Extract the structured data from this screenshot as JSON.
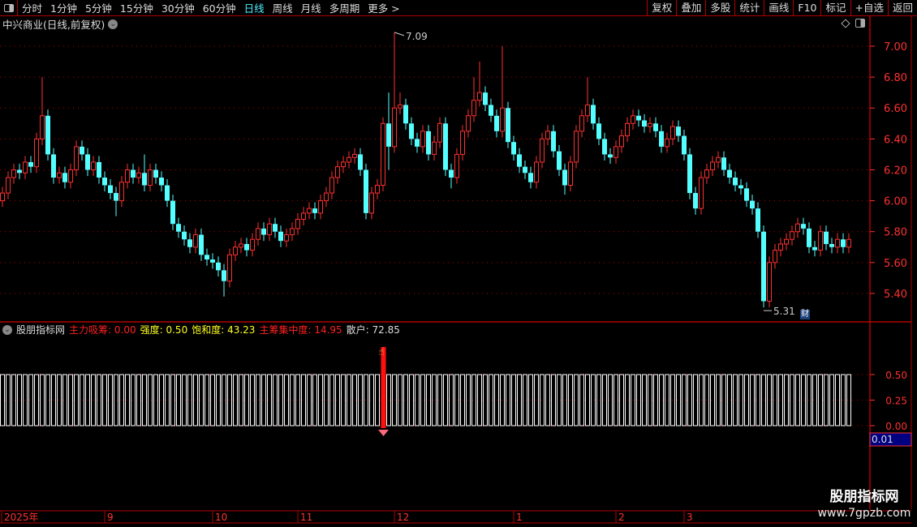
{
  "toolbar": {
    "periods": [
      "分时",
      "1分钟",
      "5分钟",
      "15分钟",
      "30分钟",
      "60分钟",
      "日线",
      "周线",
      "月线",
      "多周期",
      "更多 >"
    ],
    "active_period": "日线",
    "buttons": [
      "复权",
      "叠加",
      "多股",
      "统计",
      "画线",
      "F10",
      "标记",
      "+自选",
      "返回"
    ]
  },
  "header": {
    "title": "中兴商业(日线,前复权)"
  },
  "indicator": {
    "name": "股朋指标网",
    "items": [
      {
        "label": "主力吸筹:",
        "value": "0.00",
        "color": "red"
      },
      {
        "label": "强度:",
        "value": "0.50",
        "color": "yel"
      },
      {
        "label": "饱和度:",
        "value": "43.23",
        "color": "yel"
      },
      {
        "label": "主筹集中度:",
        "value": "14.95",
        "color": "red"
      },
      {
        "label": "散户:",
        "value": "72.85",
        "color": "wht"
      }
    ],
    "axis_ticks": [
      "0.50",
      "0.25",
      "0.00"
    ],
    "cursor_value": "0.01",
    "bar_value": 0.5,
    "highlight_index": 67
  },
  "watermark": {
    "line1": "股朋指标网",
    "line2": "www.7gpzb.com"
  },
  "badge": "财",
  "colors": {
    "up": "#ff3030",
    "down": "#54ffff",
    "axis": "#ff3030",
    "grid": "#b00000"
  },
  "chart_data": {
    "type": "candlestick",
    "ylim": [
      5.25,
      7.2
    ],
    "y_ticks": [
      "7.00",
      "6.80",
      "6.60",
      "6.40",
      "6.20",
      "6.00",
      "5.80",
      "5.60",
      "5.40"
    ],
    "max_label": "7.09",
    "min_label": "5.31",
    "time_labels": [
      {
        "label": "2025年",
        "index": 0
      },
      {
        "label": "9",
        "index": 18
      },
      {
        "label": "10",
        "index": 37
      },
      {
        "label": "11",
        "index": 52
      },
      {
        "label": "12",
        "index": 69
      },
      {
        "label": "1",
        "index": 90
      },
      {
        "label": "2",
        "index": 108
      },
      {
        "label": "3",
        "index": 120
      }
    ],
    "ohlc": [
      [
        6.0,
        6.09,
        5.96,
        6.05
      ],
      [
        6.05,
        6.19,
        6.01,
        6.15
      ],
      [
        6.15,
        6.24,
        6.11,
        6.2
      ],
      [
        6.2,
        6.24,
        6.14,
        6.18
      ],
      [
        6.18,
        6.29,
        6.14,
        6.25
      ],
      [
        6.25,
        6.29,
        6.18,
        6.22
      ],
      [
        6.22,
        6.44,
        6.18,
        6.4
      ],
      [
        6.4,
        6.8,
        6.36,
        6.55
      ],
      [
        6.55,
        6.59,
        6.26,
        6.3
      ],
      [
        6.3,
        6.34,
        6.11,
        6.15
      ],
      [
        6.15,
        6.22,
        6.11,
        6.18
      ],
      [
        6.18,
        6.22,
        6.08,
        6.12
      ],
      [
        6.12,
        6.24,
        6.08,
        6.2
      ],
      [
        6.2,
        6.39,
        6.16,
        6.35
      ],
      [
        6.35,
        6.39,
        6.26,
        6.3
      ],
      [
        6.3,
        6.34,
        6.16,
        6.2
      ],
      [
        6.2,
        6.29,
        6.16,
        6.25
      ],
      [
        6.25,
        6.29,
        6.11,
        6.15
      ],
      [
        6.15,
        6.19,
        6.06,
        6.1
      ],
      [
        6.1,
        6.14,
        6.01,
        6.05
      ],
      [
        6.05,
        6.09,
        5.9,
        6.0
      ],
      [
        6.0,
        6.16,
        5.96,
        6.12
      ],
      [
        6.12,
        6.24,
        6.08,
        6.2
      ],
      [
        6.2,
        6.24,
        6.11,
        6.15
      ],
      [
        6.15,
        6.22,
        6.11,
        6.18
      ],
      [
        6.18,
        6.3,
        6.06,
        6.1
      ],
      [
        6.1,
        6.24,
        6.06,
        6.2
      ],
      [
        6.2,
        6.24,
        6.11,
        6.15
      ],
      [
        6.15,
        6.19,
        6.06,
        6.1
      ],
      [
        6.1,
        6.14,
        5.96,
        6.0
      ],
      [
        6.0,
        6.04,
        5.81,
        5.85
      ],
      [
        5.85,
        5.89,
        5.76,
        5.8
      ],
      [
        5.8,
        5.84,
        5.71,
        5.75
      ],
      [
        5.75,
        5.79,
        5.66,
        5.7
      ],
      [
        5.7,
        5.82,
        5.66,
        5.78
      ],
      [
        5.78,
        5.82,
        5.61,
        5.65
      ],
      [
        5.65,
        5.69,
        5.58,
        5.62
      ],
      [
        5.62,
        5.66,
        5.56,
        5.6
      ],
      [
        5.6,
        5.64,
        5.51,
        5.55
      ],
      [
        5.55,
        5.59,
        5.38,
        5.48
      ],
      [
        5.48,
        5.69,
        5.44,
        5.65
      ],
      [
        5.65,
        5.74,
        5.61,
        5.7
      ],
      [
        5.7,
        5.76,
        5.66,
        5.72
      ],
      [
        5.72,
        5.76,
        5.64,
        5.68
      ],
      [
        5.68,
        5.79,
        5.64,
        5.75
      ],
      [
        5.75,
        5.86,
        5.71,
        5.82
      ],
      [
        5.82,
        5.86,
        5.74,
        5.78
      ],
      [
        5.78,
        5.89,
        5.74,
        5.85
      ],
      [
        5.85,
        5.89,
        5.76,
        5.8
      ],
      [
        5.8,
        5.84,
        5.7,
        5.74
      ],
      [
        5.74,
        5.82,
        5.7,
        5.78
      ],
      [
        5.78,
        5.86,
        5.74,
        5.82
      ],
      [
        5.82,
        5.92,
        5.78,
        5.88
      ],
      [
        5.88,
        5.96,
        5.84,
        5.92
      ],
      [
        5.92,
        5.99,
        5.88,
        5.95
      ],
      [
        5.95,
        5.99,
        5.88,
        5.92
      ],
      [
        5.92,
        6.04,
        5.88,
        6.0
      ],
      [
        6.0,
        6.09,
        5.96,
        6.05
      ],
      [
        6.05,
        6.19,
        6.01,
        6.15
      ],
      [
        6.15,
        6.26,
        6.11,
        6.22
      ],
      [
        6.22,
        6.29,
        6.18,
        6.25
      ],
      [
        6.25,
        6.32,
        6.21,
        6.28
      ],
      [
        6.28,
        6.34,
        6.24,
        6.3
      ],
      [
        6.3,
        6.34,
        6.16,
        6.2
      ],
      [
        6.2,
        6.24,
        5.88,
        5.92
      ],
      [
        5.92,
        6.09,
        5.88,
        6.05
      ],
      [
        6.05,
        6.14,
        6.01,
        6.1
      ],
      [
        6.1,
        6.54,
        6.06,
        6.5
      ],
      [
        6.5,
        6.7,
        6.2,
        6.35
      ],
      [
        6.35,
        7.09,
        6.31,
        6.6
      ],
      [
        6.6,
        6.7,
        6.56,
        6.62
      ],
      [
        6.62,
        6.66,
        6.46,
        6.5
      ],
      [
        6.5,
        6.54,
        6.36,
        6.4
      ],
      [
        6.4,
        6.44,
        6.31,
        6.35
      ],
      [
        6.35,
        6.49,
        6.31,
        6.45
      ],
      [
        6.45,
        6.49,
        6.26,
        6.3
      ],
      [
        6.3,
        6.42,
        6.26,
        6.38
      ],
      [
        6.38,
        6.54,
        6.34,
        6.5
      ],
      [
        6.5,
        6.54,
        6.16,
        6.2
      ],
      [
        6.2,
        6.24,
        6.08,
        6.15
      ],
      [
        6.15,
        6.34,
        6.11,
        6.3
      ],
      [
        6.3,
        6.49,
        6.26,
        6.45
      ],
      [
        6.45,
        6.59,
        6.41,
        6.55
      ],
      [
        6.55,
        6.8,
        6.51,
        6.65
      ],
      [
        6.65,
        6.9,
        6.61,
        6.7
      ],
      [
        6.7,
        6.74,
        6.58,
        6.62
      ],
      [
        6.62,
        6.66,
        6.51,
        6.55
      ],
      [
        6.55,
        6.59,
        6.41,
        6.45
      ],
      [
        6.45,
        7.0,
        6.41,
        6.6
      ],
      [
        6.6,
        6.64,
        6.34,
        6.38
      ],
      [
        6.38,
        6.42,
        6.26,
        6.3
      ],
      [
        6.3,
        6.34,
        6.18,
        6.22
      ],
      [
        6.22,
        6.26,
        6.14,
        6.18
      ],
      [
        6.18,
        6.22,
        6.08,
        6.12
      ],
      [
        6.12,
        6.29,
        6.08,
        6.25
      ],
      [
        6.25,
        6.44,
        6.21,
        6.4
      ],
      [
        6.4,
        6.49,
        6.36,
        6.45
      ],
      [
        6.45,
        6.49,
        6.28,
        6.32
      ],
      [
        6.32,
        6.36,
        6.16,
        6.2
      ],
      [
        6.2,
        6.24,
        6.04,
        6.1
      ],
      [
        6.1,
        6.29,
        6.06,
        6.25
      ],
      [
        6.25,
        6.49,
        6.21,
        6.45
      ],
      [
        6.45,
        6.59,
        6.41,
        6.55
      ],
      [
        6.55,
        6.8,
        6.51,
        6.62
      ],
      [
        6.62,
        6.66,
        6.46,
        6.5
      ],
      [
        6.5,
        6.54,
        6.36,
        6.4
      ],
      [
        6.4,
        6.44,
        6.26,
        6.3
      ],
      [
        6.3,
        6.34,
        6.24,
        6.28
      ],
      [
        6.28,
        6.39,
        6.24,
        6.35
      ],
      [
        6.35,
        6.46,
        6.31,
        6.42
      ],
      [
        6.42,
        6.54,
        6.38,
        6.5
      ],
      [
        6.5,
        6.59,
        6.46,
        6.55
      ],
      [
        6.55,
        6.59,
        6.48,
        6.52
      ],
      [
        6.52,
        6.56,
        6.44,
        6.48
      ],
      [
        6.48,
        6.54,
        6.44,
        6.5
      ],
      [
        6.5,
        6.54,
        6.41,
        6.45
      ],
      [
        6.45,
        6.49,
        6.31,
        6.35
      ],
      [
        6.35,
        6.44,
        6.31,
        6.4
      ],
      [
        6.4,
        6.52,
        6.36,
        6.48
      ],
      [
        6.48,
        6.52,
        6.38,
        6.42
      ],
      [
        6.42,
        6.46,
        6.26,
        6.3
      ],
      [
        6.3,
        6.34,
        6.01,
        6.05
      ],
      [
        6.05,
        6.09,
        5.91,
        5.95
      ],
      [
        5.95,
        6.19,
        5.91,
        6.15
      ],
      [
        6.15,
        6.24,
        6.11,
        6.2
      ],
      [
        6.2,
        6.29,
        6.16,
        6.25
      ],
      [
        6.25,
        6.32,
        6.21,
        6.28
      ],
      [
        6.28,
        6.32,
        6.16,
        6.2
      ],
      [
        6.2,
        6.24,
        6.11,
        6.15
      ],
      [
        6.15,
        6.19,
        6.06,
        6.1
      ],
      [
        6.1,
        6.14,
        6.04,
        6.08
      ],
      [
        6.08,
        6.12,
        5.96,
        6.0
      ],
      [
        6.0,
        6.04,
        5.91,
        5.95
      ],
      [
        5.95,
        5.99,
        5.76,
        5.8
      ],
      [
        5.8,
        5.84,
        5.31,
        5.35
      ],
      [
        5.35,
        5.64,
        5.31,
        5.6
      ],
      [
        5.6,
        5.72,
        5.56,
        5.68
      ],
      [
        5.68,
        5.76,
        5.64,
        5.72
      ],
      [
        5.72,
        5.79,
        5.68,
        5.75
      ],
      [
        5.75,
        5.84,
        5.71,
        5.8
      ],
      [
        5.8,
        5.89,
        5.76,
        5.85
      ],
      [
        5.85,
        5.89,
        5.78,
        5.82
      ],
      [
        5.82,
        5.86,
        5.66,
        5.7
      ],
      [
        5.7,
        5.74,
        5.64,
        5.68
      ],
      [
        5.68,
        5.84,
        5.64,
        5.8
      ],
      [
        5.8,
        5.84,
        5.68,
        5.72
      ],
      [
        5.72,
        5.76,
        5.66,
        5.7
      ],
      [
        5.7,
        5.79,
        5.66,
        5.75
      ],
      [
        5.75,
        5.79,
        5.66,
        5.7
      ],
      [
        5.7,
        5.79,
        5.66,
        5.75
      ]
    ]
  }
}
